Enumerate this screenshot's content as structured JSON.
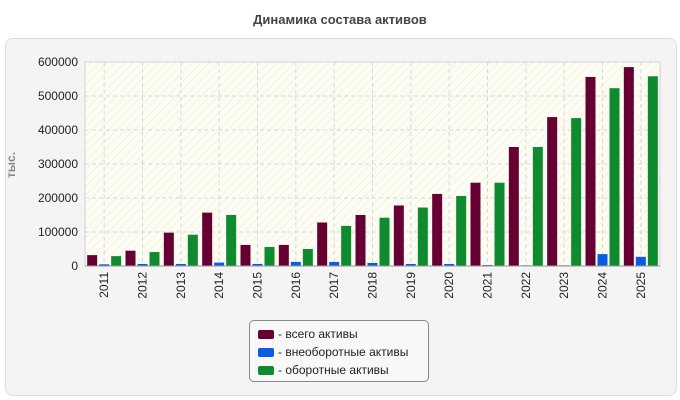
{
  "title": "Динамика состава активов",
  "chart_data": {
    "type": "bar",
    "title": "Динамика состава активов",
    "ylabel": "тыс.",
    "xlabel": "",
    "ylim": [
      0,
      600000
    ],
    "yticks": [
      "0",
      "100000",
      "200000",
      "300000",
      "400000",
      "500000",
      "600000"
    ],
    "grid": true,
    "legend_position": "bottom",
    "categories": [
      "2011",
      "2012",
      "2013",
      "2014",
      "2015",
      "2016",
      "2017",
      "2018",
      "2019",
      "2020",
      "2021",
      "2022",
      "2023",
      "2024",
      "2025"
    ],
    "series": [
      {
        "name": "- всего активы",
        "color": "#660033",
        "values": [
          32000,
          45000,
          98000,
          157000,
          62000,
          62000,
          128000,
          150000,
          178000,
          212000,
          245000,
          350000,
          438000,
          556000,
          585000
        ]
      },
      {
        "name": "- внеоборотные активы",
        "color": "#0a5ce0",
        "values": [
          5000,
          6000,
          6000,
          10000,
          6000,
          12000,
          12000,
          9000,
          6000,
          6000,
          3000,
          2000,
          2000,
          35000,
          27000
        ]
      },
      {
        "name": "- оборотные активы",
        "color": "#108a2e",
        "values": [
          29000,
          41000,
          92000,
          150000,
          56000,
          50000,
          118000,
          142000,
          172000,
          206000,
          245000,
          350000,
          435000,
          523000,
          558000
        ]
      }
    ]
  }
}
